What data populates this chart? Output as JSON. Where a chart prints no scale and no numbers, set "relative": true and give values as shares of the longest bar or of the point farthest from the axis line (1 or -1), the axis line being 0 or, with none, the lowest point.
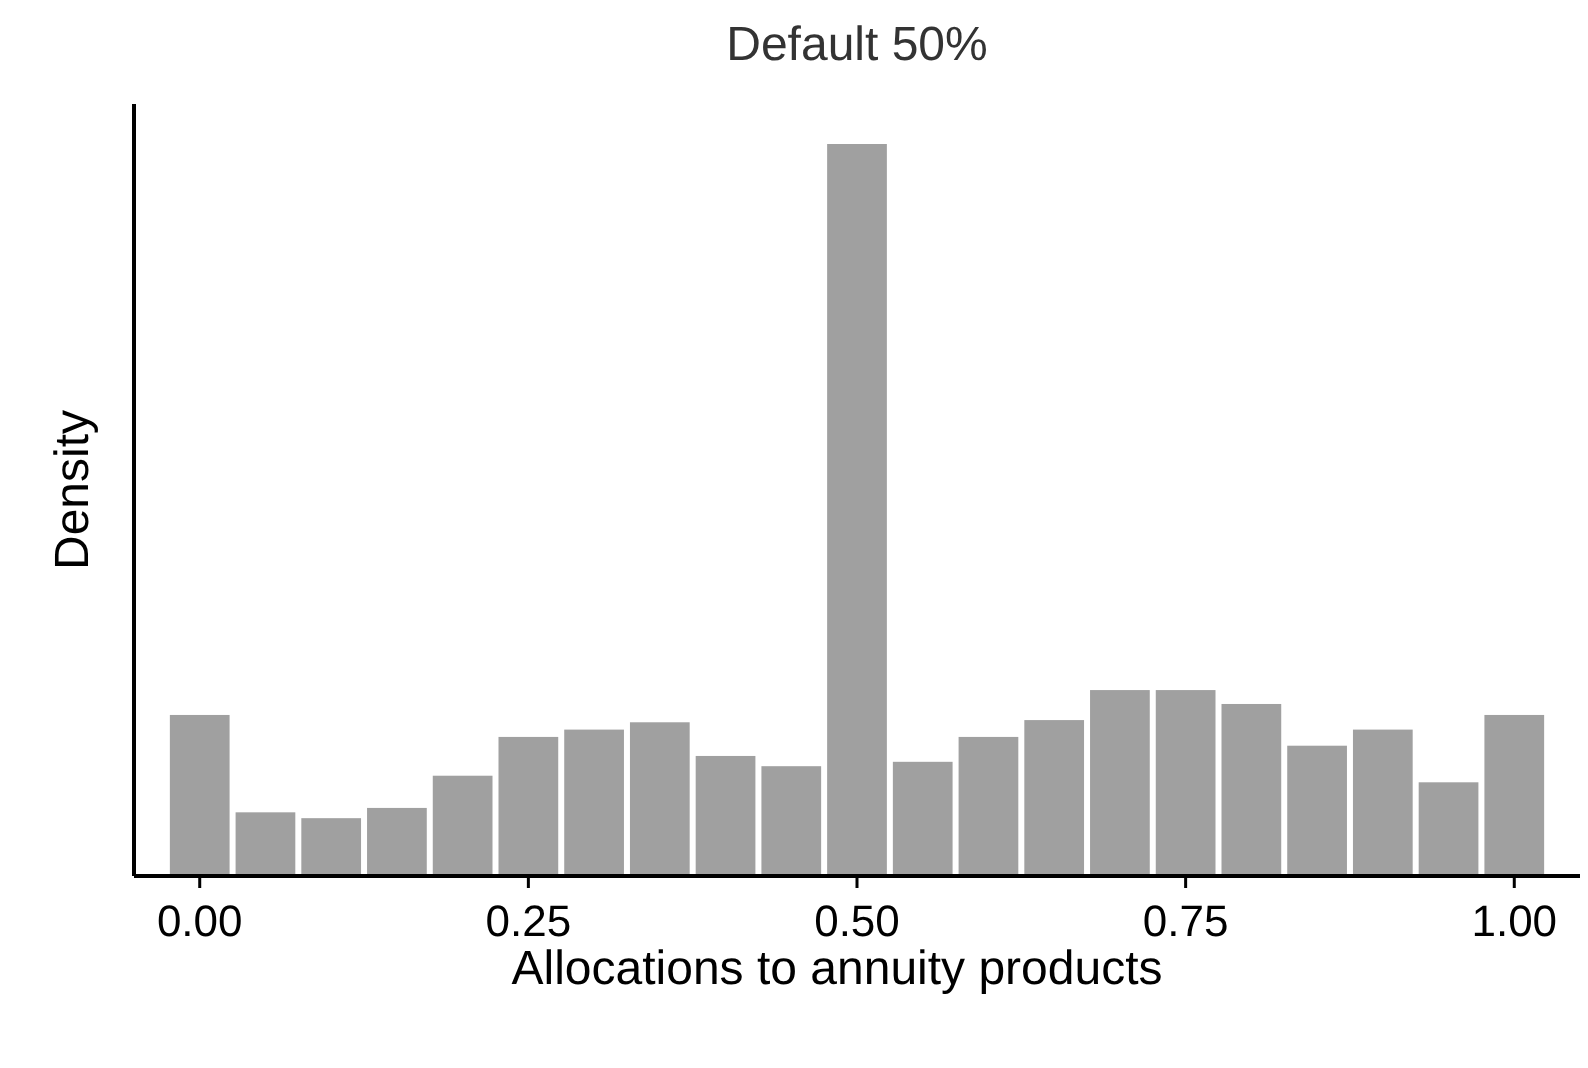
{
  "chart_data": {
    "type": "bar",
    "title": "Default 50%",
    "xlabel": "Allocations to annuity products",
    "ylabel": "Density",
    "relative": true,
    "color": "#a0a0a0",
    "x": [
      0,
      0.05,
      0.1,
      0.15,
      0.2,
      0.25,
      0.3,
      0.35,
      0.4,
      0.45,
      0.5,
      0.55,
      0.6,
      0.65,
      0.7,
      0.75,
      0.8,
      0.85,
      0.9,
      0.95,
      1
    ],
    "values": [
      0.22,
      0.087,
      0.079,
      0.093,
      0.137,
      0.19,
      0.2,
      0.21,
      0.164,
      0.15,
      1,
      0.156,
      0.19,
      0.213,
      0.254,
      0.254,
      0.235,
      0.178,
      0.2,
      0.128,
      0.22
    ],
    "xlim": [
      -0.05,
      1.05
    ],
    "xticks": [
      {
        "value": 0,
        "label": "0.00"
      },
      {
        "value": 0.25,
        "label": "0.25"
      },
      {
        "value": 0.5,
        "label": "0.50"
      },
      {
        "value": 0.75,
        "label": "0.75"
      },
      {
        "value": 1,
        "label": "1.00"
      }
    ]
  }
}
